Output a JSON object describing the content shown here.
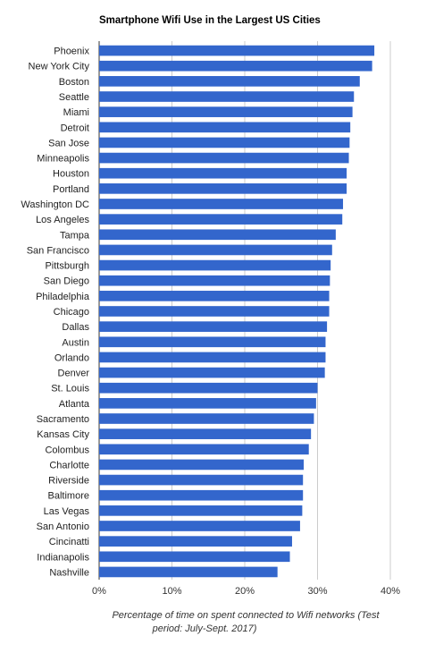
{
  "chart_data": {
    "type": "bar",
    "orientation": "horizontal",
    "title": "Smartphone Wifi Use in the Largest US Cities",
    "xlabel_lines": [
      "Percentage of time on spent connected to Wifi networks (Test",
      "period: July-Sept. 2017)"
    ],
    "ylabel": "",
    "categories": [
      "Phoenix",
      "New York City",
      "Boston",
      "Seattle",
      "Miami",
      "Detroit",
      "San Jose",
      "Minneapolis",
      "Houston",
      "Portland",
      "Washington DC",
      "Los Angeles",
      "Tampa",
      "San Francisco",
      "Pittsburgh",
      "San Diego",
      "Philadelphia",
      "Chicago",
      "Dallas",
      "Austin",
      "Orlando",
      "Denver",
      "St. Louis",
      "Atlanta",
      "Sacramento",
      "Kansas City",
      "Colombus",
      "Charlotte",
      "Riverside",
      "Baltimore",
      "Las Vegas",
      "San Antonio",
      "Cincinatti",
      "Indianapolis",
      "Nashville"
    ],
    "values": [
      37.8,
      37.5,
      35.8,
      35.0,
      34.8,
      34.5,
      34.4,
      34.3,
      34.0,
      34.0,
      33.5,
      33.4,
      32.5,
      32.0,
      31.8,
      31.7,
      31.6,
      31.6,
      31.3,
      31.1,
      31.1,
      31.0,
      30.0,
      29.8,
      29.5,
      29.1,
      28.8,
      28.1,
      28.0,
      28.0,
      27.9,
      27.6,
      26.5,
      26.2,
      24.5
    ],
    "xlim": [
      0,
      40
    ],
    "xticks": [
      0,
      10,
      20,
      30,
      40
    ],
    "xtick_labels": [
      "0%",
      "10%",
      "20%",
      "30%",
      "40%"
    ],
    "grid": true,
    "bar_color": "#3366cc",
    "grid_color": "#cccccc"
  }
}
